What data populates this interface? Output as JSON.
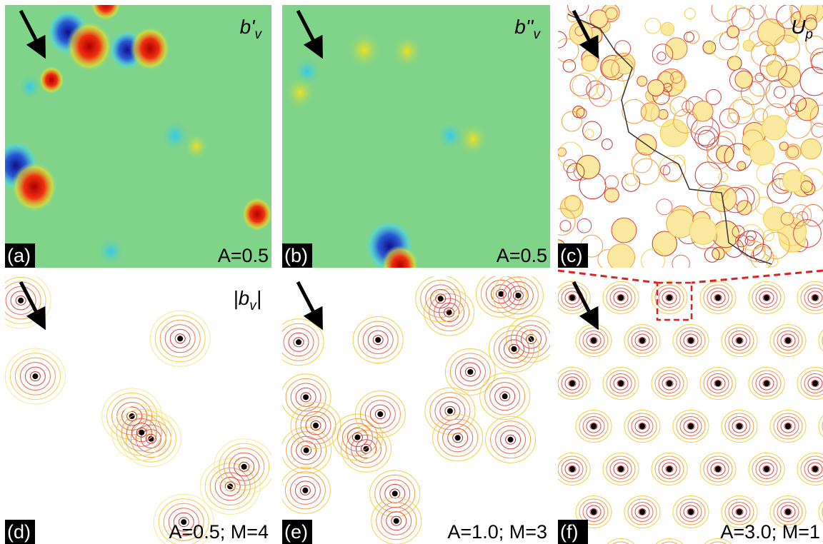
{
  "panels": [
    {
      "label": "(a)",
      "params": "A=0.5",
      "symbol": {
        "main": "b'",
        "sub": "v"
      }
    },
    {
      "label": "(b)",
      "params": "A=0.5",
      "symbol": {
        "main": "b''",
        "sub": "v"
      }
    },
    {
      "label": "(c)",
      "symbol": {
        "main": "U",
        "sub": "p"
      }
    },
    {
      "label": "(d)",
      "params": "A=0.5; M=4",
      "symbol": {
        "main": "|b",
        "sub": "v",
        "tail": "|"
      }
    },
    {
      "label": "(e)",
      "params": "A=1.0; M=3"
    },
    {
      "label": "(f)",
      "params": "A=3.0; M=1"
    }
  ]
}
